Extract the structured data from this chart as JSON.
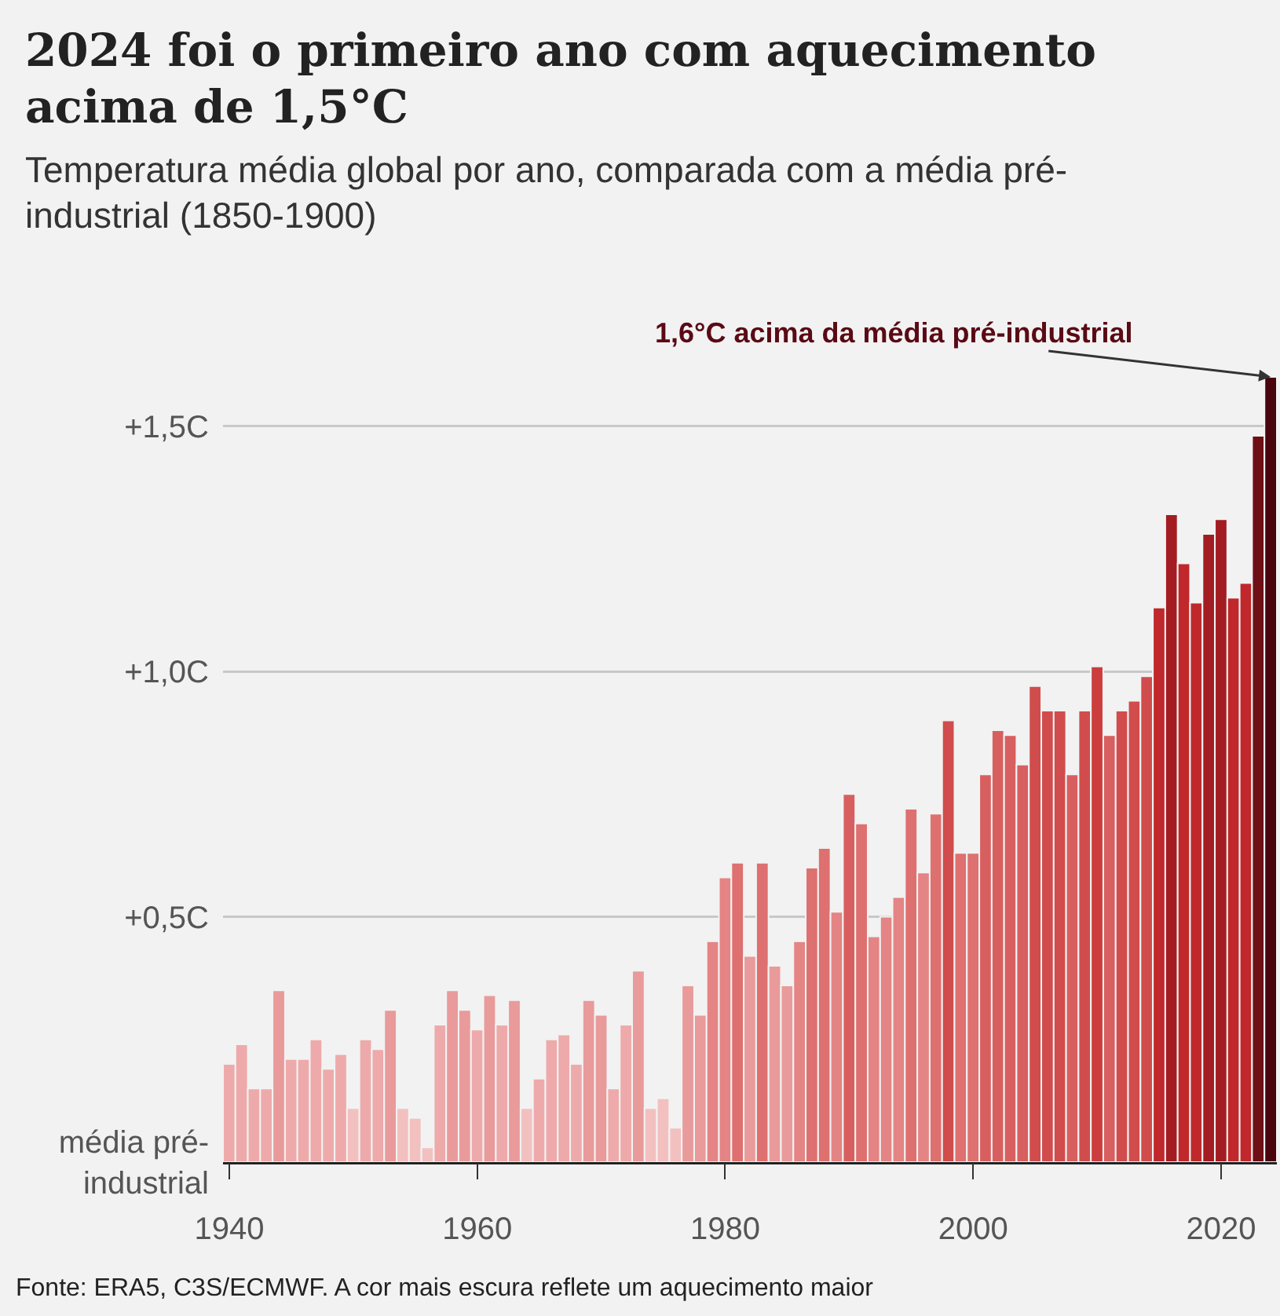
{
  "chart_data": {
    "type": "bar",
    "title": "2024 foi o primeiro ano com aquecimento acima de 1,5°C",
    "subtitle": "Temperatura média global por ano, comparada com a média pré-industrial (1850-1900)",
    "x": [
      1940,
      1941,
      1942,
      1943,
      1944,
      1945,
      1946,
      1947,
      1948,
      1949,
      1950,
      1951,
      1952,
      1953,
      1954,
      1955,
      1956,
      1957,
      1958,
      1959,
      1960,
      1961,
      1962,
      1963,
      1964,
      1965,
      1966,
      1967,
      1968,
      1969,
      1970,
      1971,
      1972,
      1973,
      1974,
      1975,
      1976,
      1977,
      1978,
      1979,
      1980,
      1981,
      1982,
      1983,
      1984,
      1985,
      1986,
      1987,
      1988,
      1989,
      1990,
      1991,
      1992,
      1993,
      1994,
      1995,
      1996,
      1997,
      1998,
      1999,
      2000,
      2001,
      2002,
      2003,
      2004,
      2005,
      2006,
      2007,
      2008,
      2009,
      2010,
      2011,
      2012,
      2013,
      2014,
      2015,
      2016,
      2017,
      2018,
      2019,
      2020,
      2021,
      2022,
      2023,
      2024
    ],
    "values": [
      0.2,
      0.24,
      0.15,
      0.15,
      0.35,
      0.21,
      0.21,
      0.25,
      0.19,
      0.22,
      0.11,
      0.25,
      0.23,
      0.31,
      0.11,
      0.09,
      0.03,
      0.28,
      0.35,
      0.31,
      0.27,
      0.34,
      0.28,
      0.33,
      0.11,
      0.17,
      0.25,
      0.26,
      0.2,
      0.33,
      0.3,
      0.15,
      0.28,
      0.39,
      0.11,
      0.13,
      0.07,
      0.36,
      0.3,
      0.45,
      0.58,
      0.61,
      0.42,
      0.61,
      0.4,
      0.36,
      0.45,
      0.6,
      0.64,
      0.51,
      0.75,
      0.69,
      0.46,
      0.5,
      0.54,
      0.72,
      0.59,
      0.71,
      0.9,
      0.63,
      0.63,
      0.79,
      0.88,
      0.87,
      0.81,
      0.97,
      0.92,
      0.92,
      0.79,
      0.92,
      1.01,
      0.87,
      0.92,
      0.94,
      0.99,
      1.13,
      1.32,
      1.22,
      1.14,
      1.28,
      1.31,
      1.15,
      1.18,
      1.48,
      1.6
    ],
    "colors": [
      "#eeaaaa",
      "#eeaaaa",
      "#eeaaaa",
      "#eeaaaa",
      "#e99a9a",
      "#eeaaaa",
      "#eeaaaa",
      "#eeaaaa",
      "#eeaaaa",
      "#eeaaaa",
      "#f3c0c0",
      "#eeaaaa",
      "#eeaaaa",
      "#e99a9a",
      "#f3c0c0",
      "#f3c0c0",
      "#f3c0c0",
      "#eeaaaa",
      "#e99a9a",
      "#e99a9a",
      "#eeaaaa",
      "#e99a9a",
      "#eeaaaa",
      "#e99a9a",
      "#f3c0c0",
      "#eeaaaa",
      "#eeaaaa",
      "#eeaaaa",
      "#eeaaaa",
      "#e99a9a",
      "#e99a9a",
      "#eeaaaa",
      "#eeaaaa",
      "#e99a9a",
      "#f3c0c0",
      "#f3c0c0",
      "#f3c0c0",
      "#e99a9a",
      "#e99a9a",
      "#e48484",
      "#e48484",
      "#de7070",
      "#e99a9a",
      "#de7070",
      "#e99a9a",
      "#e99a9a",
      "#e48484",
      "#de7070",
      "#de7070",
      "#e48484",
      "#d85f5f",
      "#de7070",
      "#e48484",
      "#e48484",
      "#e48484",
      "#de7070",
      "#e48484",
      "#de7070",
      "#d14c4c",
      "#de7070",
      "#de7070",
      "#d85f5f",
      "#d85f5f",
      "#d85f5f",
      "#d85f5f",
      "#d14c4c",
      "#d14c4c",
      "#d14c4c",
      "#d85f5f",
      "#d14c4c",
      "#cc3d3d",
      "#d85f5f",
      "#d14c4c",
      "#d14c4c",
      "#d14c4c",
      "#c0282b",
      "#a31c22",
      "#c0282b",
      "#c0282b",
      "#a31c22",
      "#a31c22",
      "#c0282b",
      "#c0282b",
      "#6e0f16",
      "#4a050c"
    ],
    "xlim": [
      1939.5,
      2024.5
    ],
    "xticks": [
      1940,
      1960,
      1980,
      2000,
      2020
    ],
    "ylim": [
      0,
      1.6
    ],
    "yticks": [
      {
        "value": 0,
        "label": "média pré-industrial"
      },
      {
        "value": 0.5,
        "label": "+0,5C"
      },
      {
        "value": 1,
        "label": "+1,0C"
      },
      {
        "value": 1.5,
        "label": "+1,5C"
      }
    ],
    "grid": "y",
    "annotations": [
      {
        "text": "1,6°C acima da média pré-industrial",
        "x": 2024,
        "y": 1.6
      },
      "Fonte: ERA5, C3S/ECMWF. A cor mais escura reflete um aquecimento maior"
    ]
  }
}
